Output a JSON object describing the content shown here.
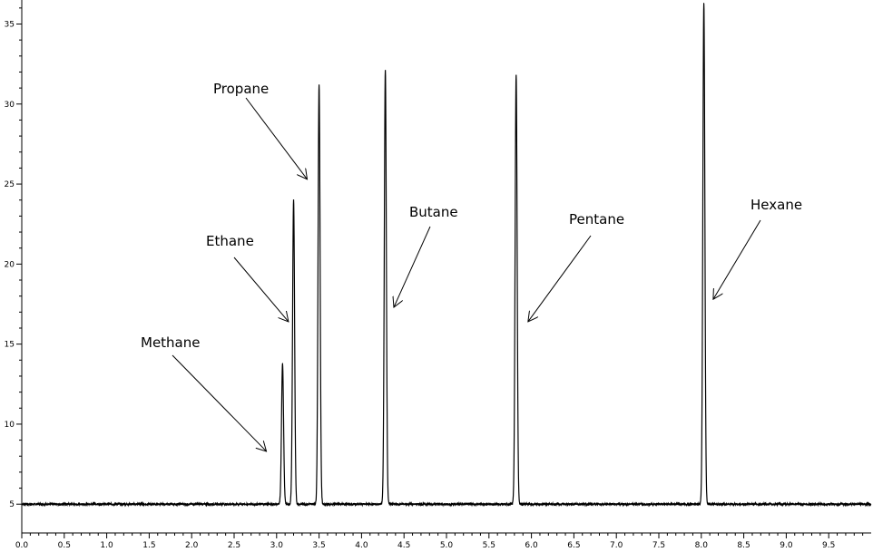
{
  "chart_data": {
    "type": "line",
    "title": "",
    "xlabel": "",
    "ylabel": "",
    "xlim": [
      0,
      10
    ],
    "ylim": [
      3.2,
      36.5
    ],
    "grid": false,
    "legend": "none",
    "x_ticks": [
      "0.0",
      "0.5",
      "1.0",
      "1.5",
      "2.0",
      "2.5",
      "3.0",
      "3.5",
      "4.0",
      "4.5",
      "5.0",
      "5.5",
      "6.0",
      "6.5",
      "7.0",
      "7.5",
      "8.0",
      "8.5",
      "9.0",
      "9.5"
    ],
    "y_ticks": [
      "5",
      "10",
      "15",
      "20",
      "25",
      "30",
      "35"
    ],
    "baseline": 5.0,
    "series": [
      {
        "line_color": "#000000",
        "peaks": [
          {
            "x": 3.07,
            "y": 13.8
          },
          {
            "x": 3.2,
            "y": 24.0
          },
          {
            "x": 3.5,
            "y": 31.2
          },
          {
            "x": 4.28,
            "y": 32.1
          },
          {
            "x": 5.82,
            "y": 31.8
          },
          {
            "x": 8.03,
            "y": 36.3
          }
        ]
      }
    ],
    "annotations": [
      {
        "text": "Methane",
        "arrow_to": {
          "x": 2.88,
          "y": 8.3
        }
      },
      {
        "text": "Ethane",
        "arrow_to": {
          "x": 3.14,
          "y": 16.4
        }
      },
      {
        "text": "Propane",
        "arrow_to": {
          "x": 3.36,
          "y": 25.3
        }
      },
      {
        "text": "Butane",
        "arrow_to": {
          "x": 4.38,
          "y": 17.3
        }
      },
      {
        "text": "Pentane",
        "arrow_to": {
          "x": 5.96,
          "y": 16.4
        }
      },
      {
        "text": "Hexane",
        "arrow_to": {
          "x": 8.14,
          "y": 17.8
        }
      }
    ]
  }
}
